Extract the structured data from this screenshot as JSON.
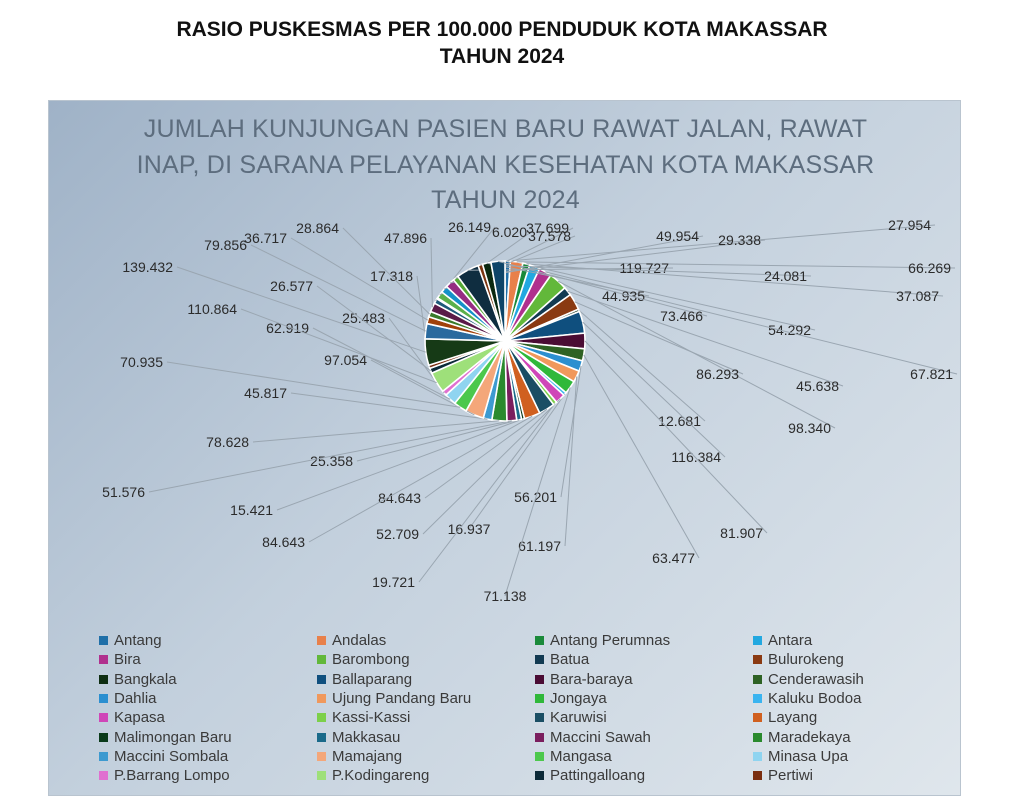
{
  "page_title": {
    "line1": "RASIO PUSKESMAS PER 100.000 PENDUDUK KOTA MAKASSAR",
    "line2": "TAHUN 2024"
  },
  "chart_data": {
    "type": "pie",
    "title_lines": [
      "JUMLAH KUNJUNGAN PASIEN BARU RAWAT JALAN, RAWAT",
      "INAP, DI SARANA PELAYANAN KESEHATAN KOTA MAKASSAR",
      "TAHUN 2024"
    ],
    "legend_position": "bottom",
    "slices": [
      {
        "name": "Antang",
        "value_label": "27.954",
        "value": 27.954,
        "color": "#1f6fa8"
      },
      {
        "name": "Andalas",
        "value_label": "66.269",
        "value": 66.269,
        "color": "#e8804a"
      },
      {
        "name": "Antang Perumnas",
        "value_label": "37.087",
        "value": 37.087,
        "color": "#1a8a3a"
      },
      {
        "name": "Antara",
        "value_label": "54.292",
        "value": 54.292,
        "color": "#22a8e0"
      },
      {
        "name": "Bira",
        "value_label": "67.821",
        "value": 67.821,
        "color": "#b0308e"
      },
      {
        "name": "Barombong",
        "value_label": "98.340",
        "value": 98.34,
        "color": "#62b83a"
      },
      {
        "name": "Batua",
        "value_label": "45.638",
        "value": 45.638,
        "color": "#123a52"
      },
      {
        "name": "Bulurokeng",
        "value_label": "86.293",
        "value": 86.293,
        "color": "#8a3a12"
      },
      {
        "name": "Bangkala",
        "value_label": "12.681",
        "value": 12.681,
        "color": "#0e2e12"
      },
      {
        "name": "Ballaparang",
        "value_label": "116.384",
        "value": 116.384,
        "color": "#0f4f7e"
      },
      {
        "name": "Bara-baraya",
        "value_label": "81.907",
        "value": 81.907,
        "color": "#4a0c34"
      },
      {
        "name": "Cenderawasih",
        "value_label": "63.477",
        "value": 63.477,
        "color": "#2e6224"
      },
      {
        "name": "Dahlia",
        "value_label": "56.201",
        "value": 56.201,
        "color": "#2b8fd0"
      },
      {
        "name": "Ujung Pandang Baru",
        "value_label": "61.197",
        "value": 61.197,
        "color": "#f0985c"
      },
      {
        "name": "Jongaya",
        "value_label": "71.138",
        "value": 71.138,
        "color": "#2fb83a"
      },
      {
        "name": "Kaluku Bodoa",
        "value_label": "16.937",
        "value": 16.937,
        "color": "#3ab4f0"
      },
      {
        "name": "Kapasa",
        "value_label": "52.709",
        "value": 52.709,
        "color": "#cf46b8"
      },
      {
        "name": "Kassi-Kassi",
        "value_label": "19.721",
        "value": 19.721,
        "color": "#7cd04a"
      },
      {
        "name": "Karuwisi",
        "value_label": "84.643",
        "value": 84.643,
        "color": "#1a4e64"
      },
      {
        "name": "Layang",
        "value_label": "84.643",
        "value": 84.643,
        "color": "#d06020"
      },
      {
        "name": "Malimongan Baru",
        "value_label": "15.421",
        "value": 15.421,
        "color": "#0a3a1a"
      },
      {
        "name": "Makkasau",
        "value_label": "25.358",
        "value": 25.358,
        "color": "#1a6a8a"
      },
      {
        "name": "Maccini Sawah",
        "value_label": "51.576",
        "value": 51.576,
        "color": "#7a1e5e"
      },
      {
        "name": "Maradekaya",
        "value_label": "78.628",
        "value": 78.628,
        "color": "#2a8a2e"
      },
      {
        "name": "Maccini Sombala",
        "value_label": "45.817",
        "value": 45.817,
        "color": "#3d9ad0"
      },
      {
        "name": "Mamajang",
        "value_label": "97.054",
        "value": 97.054,
        "color": "#f4a77a"
      },
      {
        "name": "Mangasa",
        "value_label": "70.935",
        "value": 70.935,
        "color": "#4cc84c"
      },
      {
        "name": "Minasa Upa",
        "value_label": "62.919",
        "value": 62.919,
        "color": "#8fd4f0"
      },
      {
        "name": "P.Barrang Lompo",
        "value_label": "25.483",
        "value": 25.483,
        "color": "#e070d0"
      },
      {
        "name": "P.Kodingareng",
        "value_label": "110.864",
        "value": 110.864,
        "color": "#9ee07a"
      },
      {
        "name": "Pattingalloang",
        "value_label": "26.577",
        "value": 26.577,
        "color": "#0c2a38"
      },
      {
        "name": "Pertiwi",
        "value_label": "17.318",
        "value": 17.318,
        "color": "#7a2e10"
      },
      {
        "name": "",
        "value_label": "139.432",
        "value": 139.432,
        "color": "#163a16"
      },
      {
        "name": "",
        "value_label": "79.856",
        "value": 79.856,
        "color": "#2a6a9e"
      },
      {
        "name": "",
        "value_label": "36.717",
        "value": 36.717,
        "color": "#a0410a"
      },
      {
        "name": "",
        "value_label": "28.864",
        "value": 28.864,
        "color": "#3a7a2a"
      },
      {
        "name": "",
        "value_label": "47.896",
        "value": 47.896,
        "color": "#5a1a48"
      },
      {
        "name": "",
        "value_label": "26.149",
        "value": 26.149,
        "color": "#1e5a7a"
      },
      {
        "name": "",
        "value_label": "6.020",
        "value": 6.02,
        "color": "#e8a060"
      },
      {
        "name": "",
        "value_label": "37.699",
        "value": 37.699,
        "color": "#5ab04a"
      },
      {
        "name": "",
        "value_label": "37.578",
        "value": 37.578,
        "color": "#1590c8"
      },
      {
        "name": "",
        "value_label": "49.954",
        "value": 49.954,
        "color": "#962c82"
      },
      {
        "name": "",
        "value_label": "29.338",
        "value": 29.338,
        "color": "#56a836"
      },
      {
        "name": "",
        "value_label": "119.727",
        "value": 119.727,
        "color": "#0f2d40"
      },
      {
        "name": "",
        "value_label": "24.081",
        "value": 24.081,
        "color": "#7c3410"
      },
      {
        "name": "",
        "value_label": "44.935",
        "value": 44.935,
        "color": "#0a2810"
      },
      {
        "name": "",
        "value_label": "73.466",
        "value": 73.466,
        "color": "#0e4468"
      }
    ]
  }
}
